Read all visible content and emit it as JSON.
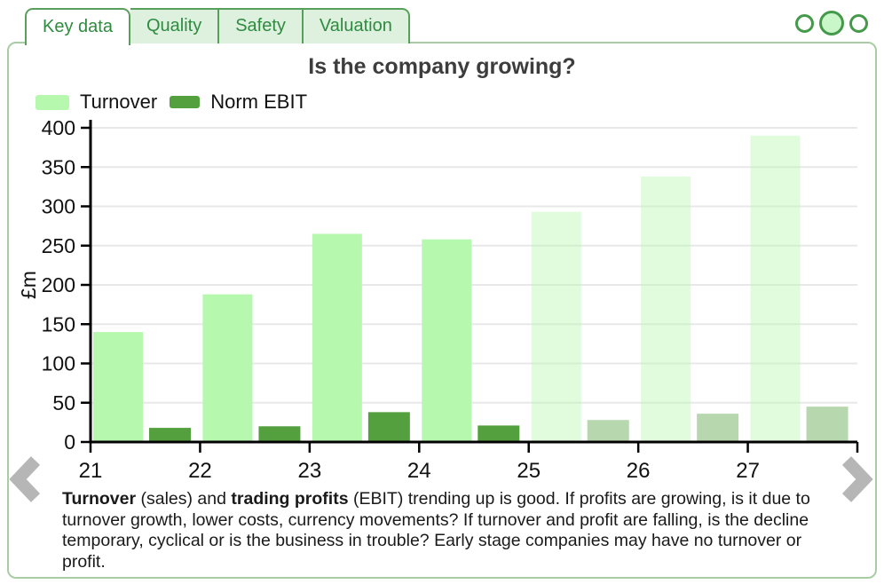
{
  "tabs": [
    {
      "label": "Key data",
      "active": true
    },
    {
      "label": "Quality",
      "active": false
    },
    {
      "label": "Safety",
      "active": false
    },
    {
      "label": "Valuation",
      "active": false
    }
  ],
  "pager": {
    "count": 3,
    "active_index": 1
  },
  "chart_data": {
    "type": "bar",
    "title": "Is the company growing?",
    "xlabel": "",
    "ylabel": "£m",
    "ylim": [
      0,
      400
    ],
    "yticks": [
      0,
      50,
      100,
      150,
      200,
      250,
      300,
      350,
      400
    ],
    "grid": true,
    "legend_position": "top-left",
    "categories": [
      "21",
      "22",
      "23",
      "24",
      "25",
      "26",
      "27"
    ],
    "series": [
      {
        "name": "Turnover",
        "color": "#b5f8ae",
        "values": [
          140,
          188,
          265,
          258,
          293,
          338,
          390
        ]
      },
      {
        "name": "Norm EBIT",
        "color": "#54a03e",
        "values": [
          18,
          20,
          38,
          21,
          28,
          36,
          45
        ]
      }
    ],
    "forecast_from_index": 4,
    "forecast_opacity": 0.42
  },
  "description": {
    "segments": [
      {
        "text": "Turnover",
        "bold": true
      },
      {
        "text": " (sales) and ",
        "bold": false
      },
      {
        "text": "trading profits",
        "bold": true
      },
      {
        "text": " (EBIT) trending up is good. If profits are growing, is it due to turnover growth, lower costs, currency movements? If turnover and profit are falling, is the decline temporary, cyclical or is the business in trouble? Early stage companies may have no turnover or profit.",
        "bold": false
      }
    ]
  },
  "colors": {
    "tab_text": "#2e8b40",
    "tab_border": "#57a05c",
    "tab_bg": "#def0de",
    "widget_border": "#a8cda4",
    "gridline": "#e8e8e8",
    "axis": "#000000",
    "chevron": "#b6b6b6",
    "dot_border": "#45994a",
    "dot_active_fill": "#c9f7c9"
  }
}
